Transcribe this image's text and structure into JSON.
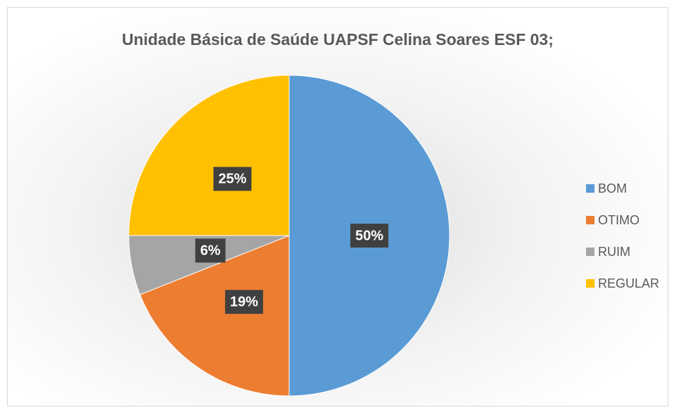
{
  "chart_data": {
    "type": "pie",
    "title": "Unidade Básica de Saúde UAPSF Celina Soares ESF 03;",
    "categories": [
      "BOM",
      "OTIMO",
      "RUIM",
      "REGULAR"
    ],
    "values": [
      50,
      19,
      6,
      25
    ],
    "value_labels": [
      "50%",
      "19%",
      "6%",
      "25%"
    ],
    "colors": [
      "#5b9bd5",
      "#ed7d31",
      "#a5a5a5",
      "#ffc000"
    ],
    "legend": "right"
  }
}
